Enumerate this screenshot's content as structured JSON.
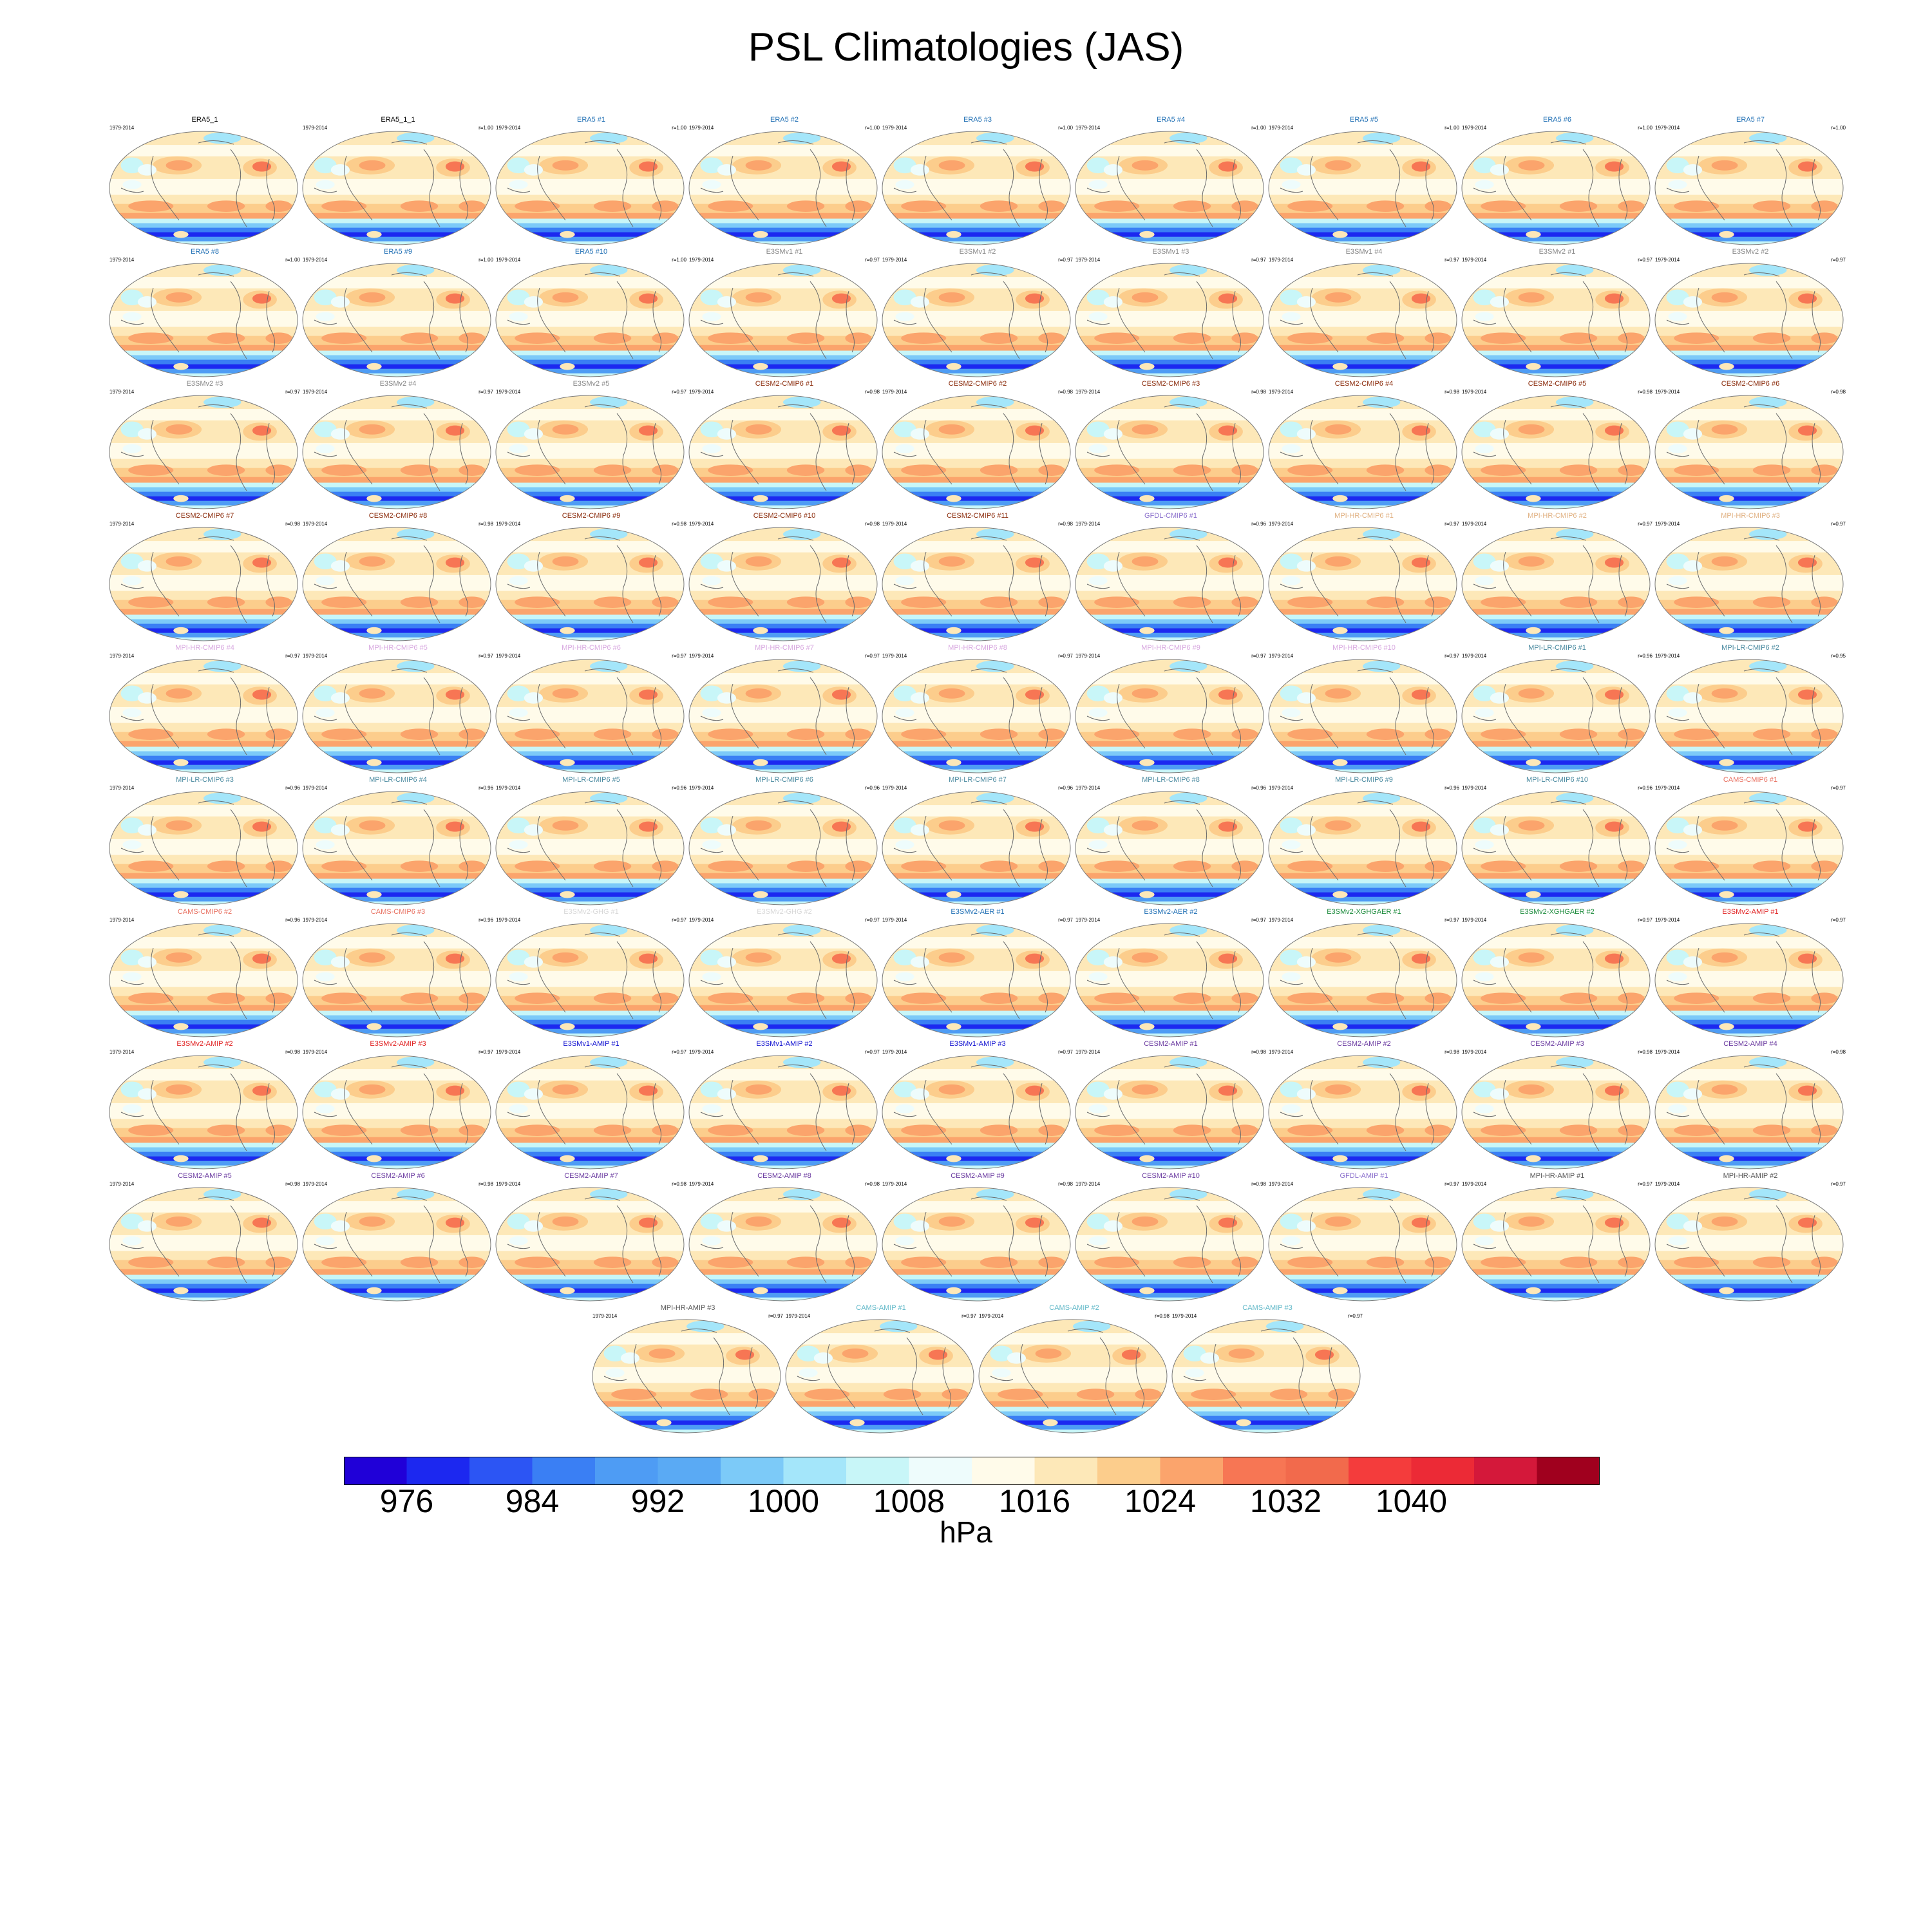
{
  "figure": {
    "title": "PSL Climatologies (JAS)"
  },
  "chart_data": {
    "type": "map",
    "title": "PSL Climatologies (JAS)",
    "variable": "PSL",
    "season": "JAS",
    "colorbar": {
      "units": "hPa",
      "tick_labels": [
        "976",
        "984",
        "992",
        "1000",
        "1008",
        "1016",
        "1024",
        "1032",
        "1040"
      ],
      "tick_values": [
        976,
        984,
        992,
        1000,
        1008,
        1016,
        1024,
        1032,
        1040
      ],
      "boundaries": [
        976,
        980,
        984,
        988,
        992,
        996,
        1000,
        1004,
        1008,
        1012,
        1016,
        1020,
        1024,
        1028,
        1032,
        1036,
        1040,
        1044
      ],
      "colors": [
        "#2000d8",
        "#1c28f0",
        "#2c55f4",
        "#3a7ff4",
        "#4e9cf4",
        "#5aaaf4",
        "#7ccaf8",
        "#a4e6fa",
        "#c8f6f8",
        "#eefcfc",
        "#fffbea",
        "#fde8b8",
        "#fccd8c",
        "#fba46c",
        "#f77654",
        "#f26a4c",
        "#f43c3c",
        "#ec2a36",
        "#d4183a",
        "#a0001e"
      ]
    },
    "panels": [
      {
        "title": "ERA5_1",
        "period": "1979-2014",
        "corr": "",
        "color": "#000000"
      },
      {
        "title": "ERA5_1_1",
        "period": "1979-2014",
        "corr": "r=1.00",
        "color": "#000000"
      },
      {
        "title": "ERA5   #1",
        "period": "1979-2014",
        "corr": "r=1.00",
        "color": "#1f6fb4"
      },
      {
        "title": "ERA5   #2",
        "period": "1979-2014",
        "corr": "r=1.00",
        "color": "#1f6fb4"
      },
      {
        "title": "ERA5   #3",
        "period": "1979-2014",
        "corr": "r=1.00",
        "color": "#1f6fb4"
      },
      {
        "title": "ERA5   #4",
        "period": "1979-2014",
        "corr": "r=1.00",
        "color": "#1f6fb4"
      },
      {
        "title": "ERA5   #5",
        "period": "1979-2014",
        "corr": "r=1.00",
        "color": "#1f6fb4"
      },
      {
        "title": "ERA5   #6",
        "period": "1979-2014",
        "corr": "r=1.00",
        "color": "#1f6fb4"
      },
      {
        "title": "ERA5   #7",
        "period": "1979-2014",
        "corr": "r=1.00",
        "color": "#1f6fb4"
      },
      {
        "title": "ERA5   #8",
        "period": "1979-2014",
        "corr": "r=1.00",
        "color": "#1f6fb4"
      },
      {
        "title": "ERA5   #9",
        "period": "1979-2014",
        "corr": "r=1.00",
        "color": "#1f6fb4"
      },
      {
        "title": "ERA5   #10",
        "period": "1979-2014",
        "corr": "r=1.00",
        "color": "#1f6fb4"
      },
      {
        "title": "E3SMv1 #1",
        "period": "1979-2014",
        "corr": "r=0.97",
        "color": "#888888"
      },
      {
        "title": "E3SMv1 #2",
        "period": "1979-2014",
        "corr": "r=0.97",
        "color": "#888888"
      },
      {
        "title": "E3SMv1 #3",
        "period": "1979-2014",
        "corr": "r=0.97",
        "color": "#888888"
      },
      {
        "title": "E3SMv1 #4",
        "period": "1979-2014",
        "corr": "r=0.97",
        "color": "#888888"
      },
      {
        "title": "E3SMv2 #1",
        "period": "1979-2014",
        "corr": "r=0.97",
        "color": "#888888"
      },
      {
        "title": "E3SMv2 #2",
        "period": "1979-2014",
        "corr": "r=0.97",
        "color": "#888888"
      },
      {
        "title": "E3SMv2 #3",
        "period": "1979-2014",
        "corr": "r=0.97",
        "color": "#888888"
      },
      {
        "title": "E3SMv2 #4",
        "period": "1979-2014",
        "corr": "r=0.97",
        "color": "#888888"
      },
      {
        "title": "E3SMv2 #5",
        "period": "1979-2014",
        "corr": "r=0.97",
        "color": "#888888"
      },
      {
        "title": "CESM2-CMIP6 #1",
        "period": "1979-2014",
        "corr": "r=0.98",
        "color": "#8b2c0c"
      },
      {
        "title": "CESM2-CMIP6 #2",
        "period": "1979-2014",
        "corr": "r=0.98",
        "color": "#8b2c0c"
      },
      {
        "title": "CESM2-CMIP6 #3",
        "period": "1979-2014",
        "corr": "r=0.98",
        "color": "#8b2c0c"
      },
      {
        "title": "CESM2-CMIP6 #4",
        "period": "1979-2014",
        "corr": "r=0.98",
        "color": "#8b2c0c"
      },
      {
        "title": "CESM2-CMIP6 #5",
        "period": "1979-2014",
        "corr": "r=0.98",
        "color": "#8b2c0c"
      },
      {
        "title": "CESM2-CMIP6 #6",
        "period": "1979-2014",
        "corr": "r=0.98",
        "color": "#8b2c0c"
      },
      {
        "title": "CESM2-CMIP6 #7",
        "period": "1979-2014",
        "corr": "r=0.98",
        "color": "#8b2c0c"
      },
      {
        "title": "CESM2-CMIP6 #8",
        "period": "1979-2014",
        "corr": "r=0.98",
        "color": "#8b2c0c"
      },
      {
        "title": "CESM2-CMIP6 #9",
        "period": "1979-2014",
        "corr": "r=0.98",
        "color": "#8b2c0c"
      },
      {
        "title": "CESM2-CMIP6 #10",
        "period": "1979-2014",
        "corr": "r=0.98",
        "color": "#8b2c0c"
      },
      {
        "title": "CESM2-CMIP6 #11",
        "period": "1979-2014",
        "corr": "r=0.98",
        "color": "#8b2c0c"
      },
      {
        "title": "GFDL-CMIP6 #1",
        "period": "1979-2014",
        "corr": "r=0.96",
        "color": "#8a6fcc"
      },
      {
        "title": "MPI-HR-CMIP6 #1",
        "period": "1979-2014",
        "corr": "r=0.97",
        "color": "#e0b080"
      },
      {
        "title": "MPI-HR-CMIP6 #2",
        "period": "1979-2014",
        "corr": "r=0.97",
        "color": "#e0b080"
      },
      {
        "title": "MPI-HR-CMIP6 #3",
        "period": "1979-2014",
        "corr": "r=0.97",
        "color": "#e0b080"
      },
      {
        "title": "MPI-HR-CMIP6 #4",
        "period": "1979-2014",
        "corr": "r=0.97",
        "color": "#d8a8e0"
      },
      {
        "title": "MPI-HR-CMIP6 #5",
        "period": "1979-2014",
        "corr": "r=0.97",
        "color": "#d8a8e0"
      },
      {
        "title": "MPI-HR-CMIP6 #6",
        "period": "1979-2014",
        "corr": "r=0.97",
        "color": "#d8a8e0"
      },
      {
        "title": "MPI-HR-CMIP6 #7",
        "period": "1979-2014",
        "corr": "r=0.97",
        "color": "#d8a8e0"
      },
      {
        "title": "MPI-HR-CMIP6 #8",
        "period": "1979-2014",
        "corr": "r=0.97",
        "color": "#d8a8e0"
      },
      {
        "title": "MPI-HR-CMIP6 #9",
        "period": "1979-2014",
        "corr": "r=0.97",
        "color": "#d8a8e0"
      },
      {
        "title": "MPI-HR-CMIP6 #10",
        "period": "1979-2014",
        "corr": "r=0.97",
        "color": "#d8a8e0"
      },
      {
        "title": "MPI-LR-CMIP6 #1",
        "period": "1979-2014",
        "corr": "r=0.96",
        "color": "#4a8aa0"
      },
      {
        "title": "MPI-LR-CMIP6 #2",
        "period": "1979-2014",
        "corr": "r=0.95",
        "color": "#4a8aa0"
      },
      {
        "title": "MPI-LR-CMIP6 #3",
        "period": "1979-2014",
        "corr": "r=0.96",
        "color": "#4a8aa0"
      },
      {
        "title": "MPI-LR-CMIP6 #4",
        "period": "1979-2014",
        "corr": "r=0.96",
        "color": "#4a8aa0"
      },
      {
        "title": "MPI-LR-CMIP6 #5",
        "period": "1979-2014",
        "corr": "r=0.96",
        "color": "#4a8aa0"
      },
      {
        "title": "MPI-LR-CMIP6 #6",
        "period": "1979-2014",
        "corr": "r=0.96",
        "color": "#4a8aa0"
      },
      {
        "title": "MPI-LR-CMIP6 #7",
        "period": "1979-2014",
        "corr": "r=0.96",
        "color": "#4a8aa0"
      },
      {
        "title": "MPI-LR-CMIP6 #8",
        "period": "1979-2014",
        "corr": "r=0.96",
        "color": "#4a8aa0"
      },
      {
        "title": "MPI-LR-CMIP6 #9",
        "period": "1979-2014",
        "corr": "r=0.96",
        "color": "#4a8aa0"
      },
      {
        "title": "MPI-LR-CMIP6 #10",
        "period": "1979-2014",
        "corr": "r=0.96",
        "color": "#4a8aa0"
      },
      {
        "title": "CAMS-CMIP6 #1",
        "period": "1979-2014",
        "corr": "r=0.97",
        "color": "#e87060"
      },
      {
        "title": "CAMS-CMIP6 #2",
        "period": "1979-2014",
        "corr": "r=0.96",
        "color": "#e87060"
      },
      {
        "title": "CAMS-CMIP6 #3",
        "period": "1979-2014",
        "corr": "r=0.96",
        "color": "#e87060"
      },
      {
        "title": "E3SMv2-GHG #1",
        "period": "1979-2014",
        "corr": "r=0.97",
        "color": "#d8d8d8"
      },
      {
        "title": "E3SMv2-GHG #2",
        "period": "1979-2014",
        "corr": "r=0.97",
        "color": "#d8d8d8"
      },
      {
        "title": "E3SMv2-AER #1",
        "period": "1979-2014",
        "corr": "r=0.97",
        "color": "#1f6fb4"
      },
      {
        "title": "E3SMv2-AER #2",
        "period": "1979-2014",
        "corr": "r=0.97",
        "color": "#1f6fb4"
      },
      {
        "title": "E3SMv2-XGHGAER #1",
        "period": "1979-2014",
        "corr": "r=0.97",
        "color": "#1a8a3a"
      },
      {
        "title": "E3SMv2-XGHGAER #2",
        "period": "1979-2014",
        "corr": "r=0.97",
        "color": "#1a8a3a"
      },
      {
        "title": "E3SMv2-AMIP #1",
        "period": "1979-2014",
        "corr": "r=0.97",
        "color": "#e02020"
      },
      {
        "title": "E3SMv2-AMIP #2",
        "period": "1979-2014",
        "corr": "r=0.98",
        "color": "#e02020"
      },
      {
        "title": "E3SMv2-AMIP #3",
        "period": "1979-2014",
        "corr": "r=0.97",
        "color": "#e02020"
      },
      {
        "title": "E3SMv1-AMIP #1",
        "period": "1979-2014",
        "corr": "r=0.97",
        "color": "#1010d0"
      },
      {
        "title": "E3SMv1-AMIP #2",
        "period": "1979-2014",
        "corr": "r=0.97",
        "color": "#1010d0"
      },
      {
        "title": "E3SMv1-AMIP #3",
        "period": "1979-2014",
        "corr": "r=0.97",
        "color": "#1010d0"
      },
      {
        "title": "CESM2-AMIP #1",
        "period": "1979-2014",
        "corr": "r=0.98",
        "color": "#6a3aa0"
      },
      {
        "title": "CESM2-AMIP #2",
        "period": "1979-2014",
        "corr": "r=0.98",
        "color": "#6a3aa0"
      },
      {
        "title": "CESM2-AMIP #3",
        "period": "1979-2014",
        "corr": "r=0.98",
        "color": "#6a3aa0"
      },
      {
        "title": "CESM2-AMIP #4",
        "period": "1979-2014",
        "corr": "r=0.98",
        "color": "#6a3aa0"
      },
      {
        "title": "CESM2-AMIP #5",
        "period": "1979-2014",
        "corr": "r=0.98",
        "color": "#6a3aa0"
      },
      {
        "title": "CESM2-AMIP #6",
        "period": "1979-2014",
        "corr": "r=0.98",
        "color": "#6a3aa0"
      },
      {
        "title": "CESM2-AMIP #7",
        "period": "1979-2014",
        "corr": "r=0.98",
        "color": "#6a3aa0"
      },
      {
        "title": "CESM2-AMIP #8",
        "period": "1979-2014",
        "corr": "r=0.98",
        "color": "#6a3aa0"
      },
      {
        "title": "CESM2-AMIP #9",
        "period": "1979-2014",
        "corr": "r=0.98",
        "color": "#6a3aa0"
      },
      {
        "title": "CESM2-AMIP #10",
        "period": "1979-2014",
        "corr": "r=0.98",
        "color": "#6a3aa0"
      },
      {
        "title": "GFDL-AMIP #1",
        "period": "1979-2014",
        "corr": "r=0.97",
        "color": "#8a6fcc"
      },
      {
        "title": "MPI-HR-AMIP #1",
        "period": "1979-2014",
        "corr": "r=0.97",
        "color": "#555555"
      },
      {
        "title": "MPI-HR-AMIP #2",
        "period": "1979-2014",
        "corr": "r=0.97",
        "color": "#555555"
      },
      {
        "title": "MPI-HR-AMIP #3",
        "period": "1979-2014",
        "corr": "r=0.97",
        "color": "#555555"
      },
      {
        "title": "CAMS-AMIP #1",
        "period": "1979-2014",
        "corr": "r=0.97",
        "color": "#60b8c8"
      },
      {
        "title": "CAMS-AMIP #2",
        "period": "1979-2014",
        "corr": "r=0.98",
        "color": "#60b8c8"
      },
      {
        "title": "CAMS-AMIP #3",
        "period": "1979-2014",
        "corr": "r=0.97",
        "color": "#60b8c8"
      }
    ]
  }
}
